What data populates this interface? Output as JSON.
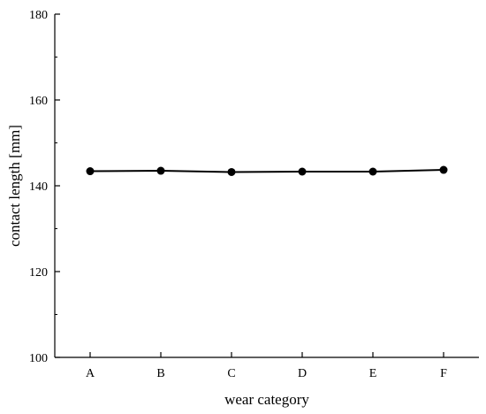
{
  "chart_data": {
    "type": "line",
    "categories": [
      "A",
      "B",
      "C",
      "D",
      "E",
      "F"
    ],
    "series": [
      {
        "values": [
          143.4,
          143.5,
          143.2,
          143.3,
          143.3,
          143.7
        ]
      }
    ],
    "title": "",
    "xlabel": "wear category",
    "ylabel": "contact length [mm]",
    "ylim": [
      100,
      180
    ],
    "yticks": [
      100,
      120,
      140,
      160,
      180
    ],
    "grid": false,
    "colors": {
      "line": "#000000",
      "marker": "#000000",
      "axis": "#000000"
    }
  }
}
